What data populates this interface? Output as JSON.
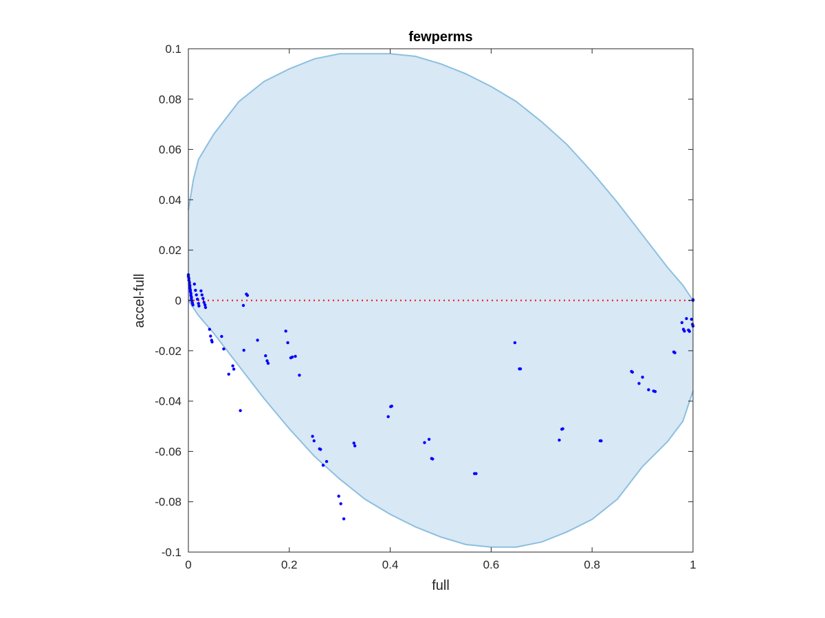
{
  "chart_data": {
    "type": "scatter",
    "title": "fewperms",
    "xlabel": "full",
    "ylabel": "accel-full",
    "xlim": [
      0,
      1
    ],
    "ylim": [
      -0.1,
      0.1
    ],
    "x_ticks": [
      "0",
      "0.2",
      "0.4",
      "0.6",
      "0.8",
      "1"
    ],
    "y_ticks": [
      "0.1",
      "0.08",
      "0.06",
      "0.04",
      "0.02",
      "0",
      "-0.02",
      "-0.04",
      "-0.06",
      "-0.08",
      "-0.1"
    ],
    "grid": false,
    "reference_line": {
      "y": 0,
      "style": "dotted",
      "color": "#ff0000"
    },
    "region": {
      "type": "filled-envelope",
      "fill": "#d8e8f4",
      "stroke": "#8bbfe0",
      "upper": [
        [
          0,
          0.036
        ],
        [
          0.01,
          0.048
        ],
        [
          0.02,
          0.056
        ],
        [
          0.05,
          0.066
        ],
        [
          0.1,
          0.079
        ],
        [
          0.15,
          0.087
        ],
        [
          0.2,
          0.092
        ],
        [
          0.25,
          0.096
        ],
        [
          0.3,
          0.098
        ],
        [
          0.35,
          0.098
        ],
        [
          0.4,
          0.098
        ],
        [
          0.45,
          0.097
        ],
        [
          0.5,
          0.094
        ],
        [
          0.55,
          0.09
        ],
        [
          0.6,
          0.085
        ],
        [
          0.65,
          0.079
        ],
        [
          0.7,
          0.071
        ],
        [
          0.75,
          0.062
        ],
        [
          0.8,
          0.051
        ],
        [
          0.85,
          0.039
        ],
        [
          0.9,
          0.026
        ],
        [
          0.95,
          0.013
        ],
        [
          0.98,
          0.006
        ],
        [
          1.0,
          0.0
        ]
      ],
      "lower": [
        [
          0,
          -0.0
        ],
        [
          0.02,
          -0.006
        ],
        [
          0.05,
          -0.013
        ],
        [
          0.1,
          -0.026
        ],
        [
          0.15,
          -0.039
        ],
        [
          0.2,
          -0.051
        ],
        [
          0.25,
          -0.062
        ],
        [
          0.3,
          -0.071
        ],
        [
          0.35,
          -0.079
        ],
        [
          0.4,
          -0.085
        ],
        [
          0.45,
          -0.09
        ],
        [
          0.5,
          -0.094
        ],
        [
          0.55,
          -0.097
        ],
        [
          0.6,
          -0.098
        ],
        [
          0.65,
          -0.098
        ],
        [
          0.7,
          -0.096
        ],
        [
          0.75,
          -0.092
        ],
        [
          0.8,
          -0.087
        ],
        [
          0.85,
          -0.079
        ],
        [
          0.9,
          -0.066
        ],
        [
          0.95,
          -0.056
        ],
        [
          0.98,
          -0.048
        ],
        [
          1.0,
          -0.036
        ]
      ]
    },
    "points_color": "#0000ff",
    "points": [
      [
        0.0,
        0.0102
      ],
      [
        0.0,
        0.0095
      ],
      [
        0.001,
        0.0088
      ],
      [
        0.001,
        0.008
      ],
      [
        0.002,
        0.0072
      ],
      [
        0.002,
        0.0065
      ],
      [
        0.003,
        0.0058
      ],
      [
        0.003,
        0.005
      ],
      [
        0.004,
        0.0042
      ],
      [
        0.004,
        0.0035
      ],
      [
        0.005,
        0.0028
      ],
      [
        0.005,
        0.002
      ],
      [
        0.006,
        0.0013
      ],
      [
        0.006,
        0.0006
      ],
      [
        0.007,
        -0.0002
      ],
      [
        0.008,
        -0.001
      ],
      [
        0.009,
        -0.0018
      ],
      [
        0.012,
        0.0065
      ],
      [
        0.014,
        0.004
      ],
      [
        0.016,
        0.0022
      ],
      [
        0.018,
        0.0005
      ],
      [
        0.02,
        -0.0012
      ],
      [
        0.021,
        -0.0022
      ],
      [
        0.025,
        0.0038
      ],
      [
        0.027,
        0.0022
      ],
      [
        0.029,
        0.0008
      ],
      [
        0.031,
        -0.0008
      ],
      [
        0.033,
        -0.0018
      ],
      [
        0.034,
        -0.0028
      ],
      [
        0.109,
        -0.002
      ],
      [
        0.115,
        0.0025
      ],
      [
        0.117,
        0.002
      ],
      [
        0.042,
        -0.0115
      ],
      [
        0.044,
        -0.0142
      ],
      [
        0.046,
        -0.0158
      ],
      [
        0.047,
        -0.0165
      ],
      [
        0.066,
        -0.0143
      ],
      [
        0.07,
        -0.0193
      ],
      [
        0.08,
        -0.0293
      ],
      [
        0.088,
        -0.026
      ],
      [
        0.09,
        -0.0273
      ],
      [
        0.103,
        -0.0438
      ],
      [
        0.11,
        -0.0198
      ],
      [
        0.137,
        -0.0158
      ],
      [
        0.153,
        -0.022
      ],
      [
        0.156,
        -0.024
      ],
      [
        0.158,
        -0.025
      ],
      [
        0.193,
        -0.0122
      ],
      [
        0.197,
        -0.0168
      ],
      [
        0.203,
        -0.0228
      ],
      [
        0.206,
        -0.0225
      ],
      [
        0.212,
        -0.0222
      ],
      [
        0.22,
        -0.0297
      ],
      [
        0.246,
        -0.054
      ],
      [
        0.249,
        -0.0558
      ],
      [
        0.26,
        -0.059
      ],
      [
        0.262,
        -0.0592
      ],
      [
        0.267,
        -0.0655
      ],
      [
        0.274,
        -0.064
      ],
      [
        0.298,
        -0.0778
      ],
      [
        0.302,
        -0.0808
      ],
      [
        0.308,
        -0.0868
      ],
      [
        0.328,
        -0.0567
      ],
      [
        0.33,
        -0.0578
      ],
      [
        0.396,
        -0.0462
      ],
      [
        0.401,
        -0.0422
      ],
      [
        0.403,
        -0.042
      ],
      [
        0.468,
        -0.0565
      ],
      [
        0.477,
        -0.0552
      ],
      [
        0.482,
        -0.0628
      ],
      [
        0.484,
        -0.063
      ],
      [
        0.567,
        -0.0688
      ],
      [
        0.57,
        -0.0688
      ],
      [
        0.647,
        -0.0168
      ],
      [
        0.656,
        -0.0272
      ],
      [
        0.658,
        -0.0272
      ],
      [
        0.735,
        -0.0555
      ],
      [
        0.74,
        -0.0512
      ],
      [
        0.742,
        -0.051
      ],
      [
        0.816,
        -0.0558
      ],
      [
        0.818,
        -0.0558
      ],
      [
        0.878,
        -0.0282
      ],
      [
        0.88,
        -0.0285
      ],
      [
        0.893,
        -0.033
      ],
      [
        0.9,
        -0.0305
      ],
      [
        0.912,
        -0.0355
      ],
      [
        0.922,
        -0.036
      ],
      [
        0.925,
        -0.0362
      ],
      [
        0.962,
        -0.0205
      ],
      [
        0.964,
        -0.0208
      ],
      [
        0.978,
        -0.0088
      ],
      [
        0.981,
        -0.0115
      ],
      [
        0.983,
        -0.0122
      ],
      [
        0.987,
        -0.0072
      ],
      [
        0.991,
        -0.0118
      ],
      [
        0.993,
        -0.0123
      ],
      [
        0.997,
        -0.0075
      ],
      [
        0.999,
        -0.0095
      ],
      [
        1.0,
        -0.0102
      ],
      [
        1.0,
        0.0
      ],
      [
        1.0,
        0.0003
      ]
    ]
  }
}
